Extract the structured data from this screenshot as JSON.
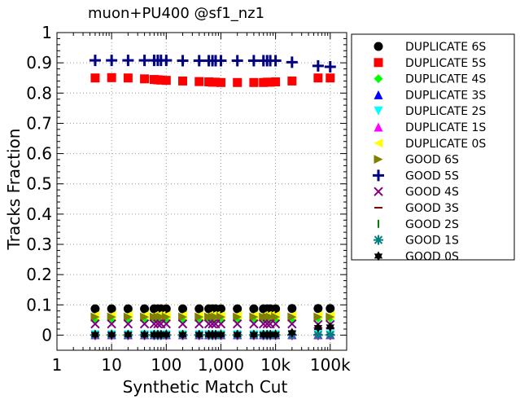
{
  "chart_data": {
    "type": "scatter",
    "title": "muon+PU400 @sf1_nz1",
    "xlabel": "Synthetic Match Cut",
    "ylabel": "Tracks Fraction",
    "xscale": "log",
    "xlim": [
      1,
      200000
    ],
    "ylim": [
      -0.05,
      1
    ],
    "grid": true,
    "legend_position": "outside-right",
    "x_ticks": [
      {
        "value": 1,
        "label": "1"
      },
      {
        "value": 10,
        "label": "10"
      },
      {
        "value": 100,
        "label": "100"
      },
      {
        "value": 1000,
        "label": "1,000"
      },
      {
        "value": 10000,
        "label": "10k"
      },
      {
        "value": 100000,
        "label": "100k"
      }
    ],
    "y_ticks": [
      {
        "value": 0,
        "label": "0"
      },
      {
        "value": 0.1,
        "label": "0.1"
      },
      {
        "value": 0.2,
        "label": "0.2"
      },
      {
        "value": 0.3,
        "label": "0.3"
      },
      {
        "value": 0.4,
        "label": "0.4"
      },
      {
        "value": 0.5,
        "label": "0.5"
      },
      {
        "value": 0.6,
        "label": "0.6"
      },
      {
        "value": 0.7,
        "label": "0.7"
      },
      {
        "value": 0.8,
        "label": "0.8"
      },
      {
        "value": 0.9,
        "label": "0.9"
      },
      {
        "value": 1,
        "label": "1"
      }
    ],
    "x": [
      5,
      10,
      20,
      40,
      60,
      70,
      80,
      100,
      200,
      400,
      600,
      700,
      800,
      1000,
      2000,
      4000,
      6000,
      7000,
      8000,
      10000,
      20000,
      60000,
      100000
    ],
    "series": [
      {
        "name": "DUPLICATE 6S",
        "color": "#000000",
        "marker": "circle",
        "values": [
          0.087,
          0.087,
          0.087,
          0.087,
          0.087,
          0.087,
          0.087,
          0.087,
          0.087,
          0.087,
          0.087,
          0.087,
          0.087,
          0.087,
          0.087,
          0.087,
          0.087,
          0.087,
          0.087,
          0.087,
          0.088,
          0.088,
          0.088
        ]
      },
      {
        "name": "DUPLICATE 5S",
        "color": "#ff0000",
        "marker": "square",
        "values": [
          0.85,
          0.851,
          0.85,
          0.847,
          0.845,
          0.844,
          0.843,
          0.842,
          0.84,
          0.838,
          0.837,
          0.836,
          0.836,
          0.835,
          0.835,
          0.835,
          0.835,
          0.836,
          0.836,
          0.837,
          0.84,
          0.85,
          0.85
        ]
      },
      {
        "name": "DUPLICATE 4S",
        "color": "#00ff00",
        "marker": "diamond",
        "values": [
          0.055,
          0.055,
          0.055,
          0.055,
          0.055,
          0.055,
          0.055,
          0.055,
          0.055,
          0.055,
          0.055,
          0.055,
          0.055,
          0.055,
          0.055,
          0.055,
          0.055,
          0.055,
          0.055,
          0.055,
          0.055,
          0.056,
          0.056
        ]
      },
      {
        "name": "DUPLICATE 3S",
        "color": "#0000ff",
        "marker": "triangle-up",
        "values": [
          0.002,
          0.002,
          0.002,
          0.002,
          0.002,
          0.002,
          0.002,
          0.002,
          0.002,
          0.002,
          0.002,
          0.002,
          0.002,
          0.002,
          0.002,
          0.002,
          0.002,
          0.002,
          0.002,
          0.002,
          0.002,
          0.002,
          0.002
        ]
      },
      {
        "name": "DUPLICATE 2S",
        "color": "#00ffff",
        "marker": "triangle-down",
        "values": [
          0.001,
          0.001,
          0.001,
          0.001,
          0.001,
          0.001,
          0.001,
          0.001,
          0.001,
          0.001,
          0.001,
          0.001,
          0.001,
          0.001,
          0.001,
          0.001,
          0.001,
          0.001,
          0.001,
          0.001,
          0.001,
          0.001,
          0.001
        ]
      },
      {
        "name": "DUPLICATE 1S",
        "color": "#ff00ff",
        "marker": "triangle-up",
        "values": [
          0.001,
          0.001,
          0.001,
          0.001,
          0.001,
          0.001,
          0.001,
          0.001,
          0.001,
          0.001,
          0.001,
          0.001,
          0.001,
          0.001,
          0.001,
          0.001,
          0.001,
          0.001,
          0.001,
          0.001,
          0.001,
          0.001,
          0.001
        ]
      },
      {
        "name": "DUPLICATE 0S",
        "color": "#ffff00",
        "marker": "triangle-left",
        "values": [
          0.065,
          0.065,
          0.065,
          0.065,
          0.065,
          0.065,
          0.065,
          0.065,
          0.065,
          0.065,
          0.065,
          0.065,
          0.065,
          0.065,
          0.065,
          0.065,
          0.065,
          0.065,
          0.065,
          0.065,
          0.065,
          0.065,
          0.065
        ]
      },
      {
        "name": "GOOD 6S",
        "color": "#808000",
        "marker": "triangle-right",
        "values": [
          0.06,
          0.06,
          0.06,
          0.06,
          0.06,
          0.06,
          0.06,
          0.06,
          0.06,
          0.06,
          0.06,
          0.06,
          0.06,
          0.06,
          0.06,
          0.06,
          0.06,
          0.06,
          0.06,
          0.06,
          0.06,
          0.06,
          0.06
        ]
      },
      {
        "name": "GOOD 5S",
        "color": "#000080",
        "marker": "plus",
        "values": [
          0.908,
          0.908,
          0.908,
          0.908,
          0.908,
          0.908,
          0.908,
          0.908,
          0.907,
          0.907,
          0.907,
          0.907,
          0.907,
          0.907,
          0.907,
          0.907,
          0.907,
          0.907,
          0.907,
          0.907,
          0.902,
          0.89,
          0.887
        ]
      },
      {
        "name": "GOOD 4S",
        "color": "#800080",
        "marker": "x",
        "values": [
          0.037,
          0.037,
          0.037,
          0.037,
          0.037,
          0.037,
          0.037,
          0.037,
          0.037,
          0.037,
          0.037,
          0.037,
          0.037,
          0.037,
          0.037,
          0.037,
          0.037,
          0.037,
          0.037,
          0.037,
          0.037,
          0.035,
          0.035
        ]
      },
      {
        "name": "GOOD 3S",
        "color": "#800000",
        "marker": "hline",
        "values": [
          0.002,
          0.002,
          0.002,
          0.002,
          0.002,
          0.002,
          0.002,
          0.002,
          0.002,
          0.002,
          0.002,
          0.002,
          0.002,
          0.002,
          0.002,
          0.002,
          0.002,
          0.002,
          0.002,
          0.002,
          0.002,
          0.002,
          0.002
        ]
      },
      {
        "name": "GOOD 2S",
        "color": "#008000",
        "marker": "vline",
        "values": [
          0.001,
          0.001,
          0.001,
          0.001,
          0.001,
          0.001,
          0.001,
          0.001,
          0.001,
          0.001,
          0.001,
          0.001,
          0.001,
          0.001,
          0.001,
          0.001,
          0.001,
          0.001,
          0.001,
          0.001,
          0.001,
          0.001,
          0.001
        ]
      },
      {
        "name": "GOOD 1S",
        "color": "#008080",
        "marker": "asterisk",
        "values": [
          0.0,
          0.0,
          0.0,
          0.0,
          0.0,
          0.0,
          0.0,
          0.0,
          0.0,
          0.0,
          0.0,
          0.0,
          0.0,
          0.0,
          0.0,
          0.0,
          0.0,
          0.0,
          0.0,
          0.0,
          0.0,
          0.0,
          0.0
        ]
      },
      {
        "name": "GOOD 0S",
        "color": "#000000",
        "marker": "star",
        "values": [
          0.002,
          0.002,
          0.002,
          0.002,
          0.002,
          0.002,
          0.002,
          0.002,
          0.002,
          0.002,
          0.002,
          0.002,
          0.002,
          0.002,
          0.002,
          0.002,
          0.002,
          0.002,
          0.002,
          0.002,
          0.008,
          0.025,
          0.027
        ]
      }
    ]
  }
}
